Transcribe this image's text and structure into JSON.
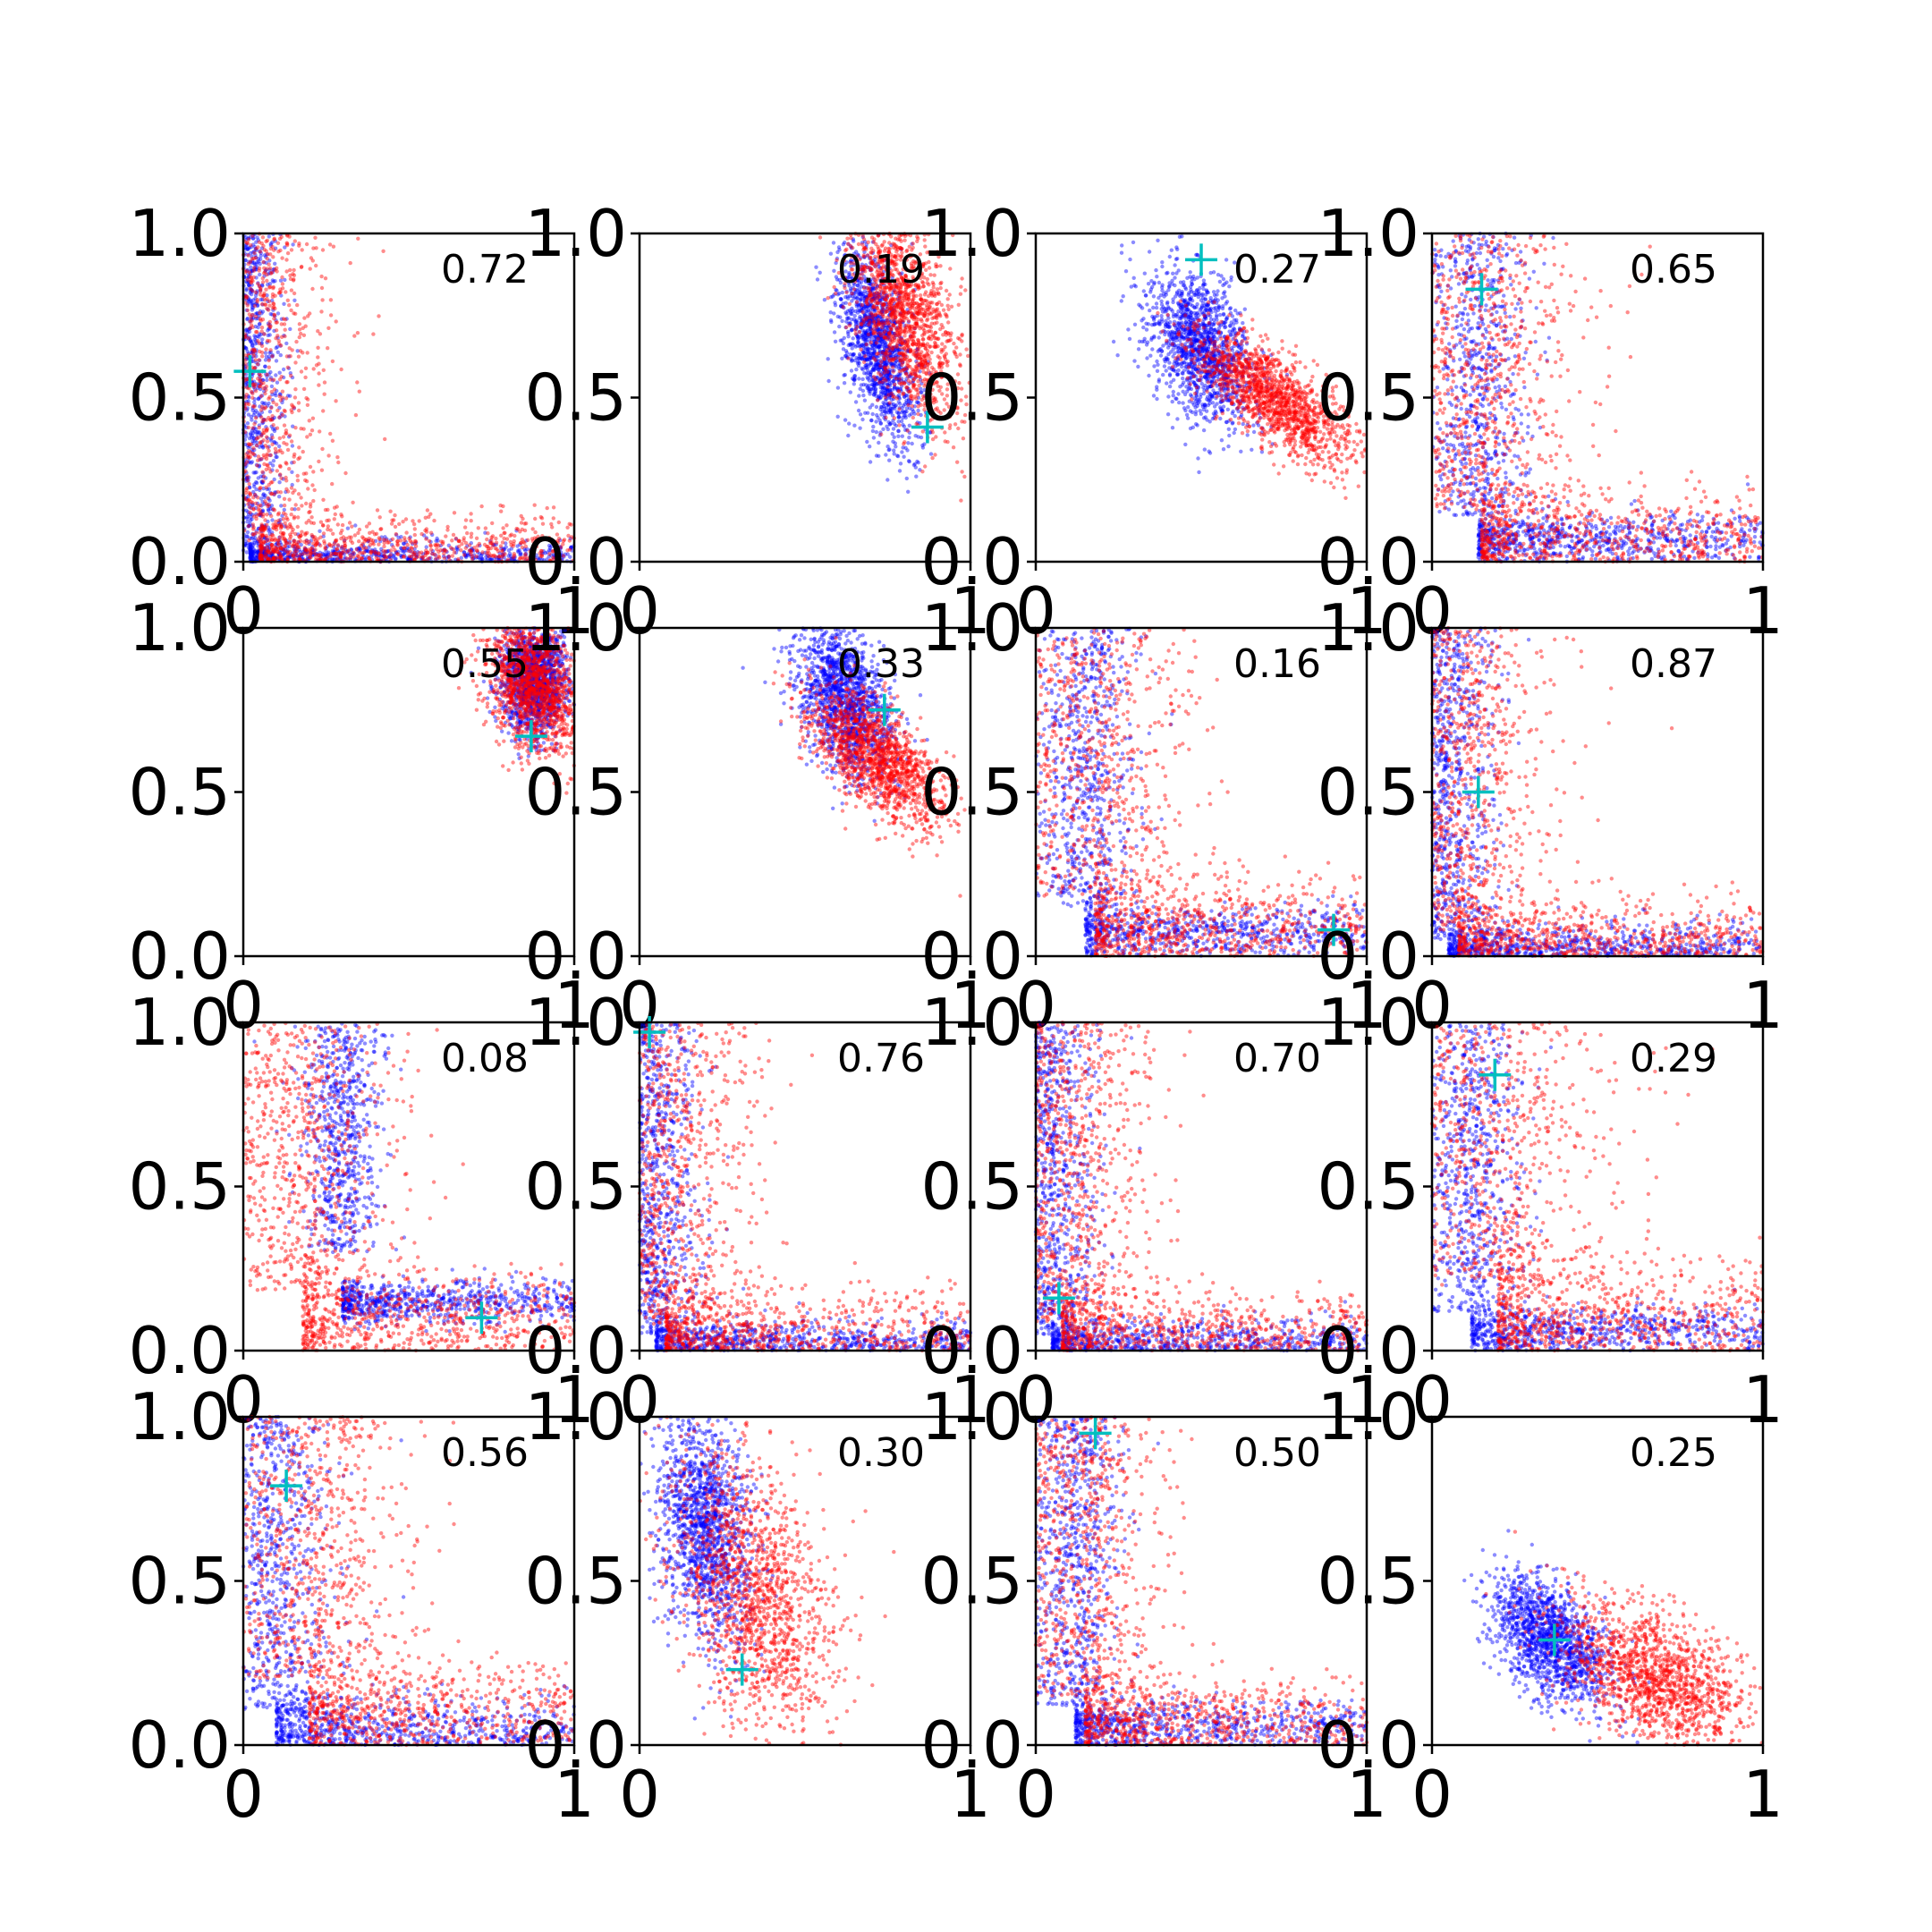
{
  "chart_data": {
    "type": "scatter",
    "grid": "off",
    "rows": 4,
    "cols": 4,
    "xlim": [
      0,
      1
    ],
    "ylim": [
      0,
      1
    ],
    "x_ticks": [
      0,
      1
    ],
    "x_tick_labels": [
      "0",
      "1"
    ],
    "y_ticks": [
      0,
      0.5,
      1
    ],
    "y_tick_labels": [
      "0.0",
      "0.5",
      "1.0"
    ],
    "colors": {
      "series_a": "#0000ff",
      "series_b": "#ff0000",
      "marker": "#00bfbf"
    },
    "panels": [
      {
        "annotation": "0.72",
        "marker": [
          0.02,
          0.58
        ],
        "blue": {
          "kind": "L",
          "spread": 0.04,
          "base": 0.02
        },
        "red": {
          "kind": "L",
          "spread": 0.08,
          "base": 0.05
        }
      },
      {
        "annotation": "0.19",
        "marker": [
          0.87,
          0.41
        ],
        "blue": {
          "kind": "blob",
          "cx": 0.72,
          "cy": 0.66,
          "sx": 0.06,
          "sy": 0.15,
          "rho": -0.5
        },
        "red": {
          "kind": "blob",
          "cx": 0.8,
          "cy": 0.75,
          "sx": 0.08,
          "sy": 0.16,
          "rho": -0.5
        }
      },
      {
        "annotation": "0.27",
        "marker": [
          0.5,
          0.92
        ],
        "blue": {
          "kind": "blob",
          "cx": 0.5,
          "cy": 0.65,
          "sx": 0.08,
          "sy": 0.12,
          "rho": -0.4
        },
        "red": {
          "kind": "blob",
          "cx": 0.72,
          "cy": 0.5,
          "sx": 0.12,
          "sy": 0.1,
          "rho": -0.7
        }
      },
      {
        "annotation": "0.65",
        "marker": [
          0.15,
          0.83
        ],
        "blue": {
          "kind": "L",
          "spread": 0.05,
          "base": 0.14
        },
        "red": {
          "kind": "L",
          "spread": 0.1,
          "base": 0.15
        }
      },
      {
        "annotation": "0.55",
        "marker": [
          0.87,
          0.67
        ],
        "blue": {
          "kind": "blob",
          "cx": 0.88,
          "cy": 0.84,
          "sx": 0.05,
          "sy": 0.08,
          "rho": 0
        },
        "red": {
          "kind": "blob",
          "cx": 0.88,
          "cy": 0.82,
          "sx": 0.07,
          "sy": 0.1,
          "rho": -0.3
        }
      },
      {
        "annotation": "0.33",
        "marker": [
          0.74,
          0.75
        ],
        "blue": {
          "kind": "blob",
          "cx": 0.62,
          "cy": 0.78,
          "sx": 0.07,
          "sy": 0.12,
          "rho": -0.4
        },
        "red": {
          "kind": "blob",
          "cx": 0.72,
          "cy": 0.6,
          "sx": 0.1,
          "sy": 0.1,
          "rho": -0.6
        }
      },
      {
        "annotation": "0.16",
        "marker": [
          0.9,
          0.08
        ],
        "blue": {
          "kind": "L",
          "spread": 0.05,
          "base": 0.15
        },
        "red": {
          "kind": "L",
          "spread": 0.1,
          "base": 0.18
        }
      },
      {
        "annotation": "0.87",
        "marker": [
          0.14,
          0.5
        ],
        "blue": {
          "kind": "L",
          "spread": 0.05,
          "base": 0.05
        },
        "red": {
          "kind": "L",
          "spread": 0.1,
          "base": 0.08
        }
      },
      {
        "annotation": "0.08",
        "marker": [
          0.72,
          0.1
        ],
        "blue": {
          "kind": "L",
          "spread": 0.04,
          "base": 0.3
        },
        "red": {
          "kind": "L",
          "spread": 0.1,
          "base": 0.18
        }
      },
      {
        "annotation": "0.76",
        "marker": [
          0.03,
          0.97
        ],
        "blue": {
          "kind": "L",
          "spread": 0.05,
          "base": 0.05
        },
        "red": {
          "kind": "L",
          "spread": 0.1,
          "base": 0.08
        }
      },
      {
        "annotation": "0.70",
        "marker": [
          0.07,
          0.16
        ],
        "blue": {
          "kind": "L",
          "spread": 0.05,
          "base": 0.05
        },
        "red": {
          "kind": "L",
          "spread": 0.1,
          "base": 0.08
        }
      },
      {
        "annotation": "0.29",
        "marker": [
          0.19,
          0.84
        ],
        "blue": {
          "kind": "L",
          "spread": 0.05,
          "base": 0.12
        },
        "red": {
          "kind": "L",
          "spread": 0.12,
          "base": 0.2
        }
      },
      {
        "annotation": "0.56",
        "marker": [
          0.13,
          0.79
        ],
        "blue": {
          "kind": "L",
          "spread": 0.06,
          "base": 0.1
        },
        "red": {
          "kind": "L",
          "spread": 0.1,
          "base": 0.2
        }
      },
      {
        "annotation": "0.30",
        "marker": [
          0.31,
          0.23
        ],
        "blue": {
          "kind": "blob",
          "cx": 0.2,
          "cy": 0.65,
          "sx": 0.07,
          "sy": 0.18,
          "rho": -0.3
        },
        "red": {
          "kind": "blob",
          "cx": 0.35,
          "cy": 0.45,
          "sx": 0.12,
          "sy": 0.22,
          "rho": -0.4
        }
      },
      {
        "annotation": "0.50",
        "marker": [
          0.18,
          0.95
        ],
        "blue": {
          "kind": "L",
          "spread": 0.05,
          "base": 0.12
        },
        "red": {
          "kind": "L",
          "spread": 0.08,
          "base": 0.15
        }
      },
      {
        "annotation": "0.25",
        "marker": [
          0.37,
          0.32
        ],
        "blue": {
          "kind": "blob",
          "cx": 0.36,
          "cy": 0.32,
          "sx": 0.09,
          "sy": 0.1,
          "rho": -0.5
        },
        "red": {
          "kind": "blob",
          "cx": 0.68,
          "cy": 0.2,
          "sx": 0.15,
          "sy": 0.12,
          "rho": -0.5
        }
      }
    ]
  }
}
